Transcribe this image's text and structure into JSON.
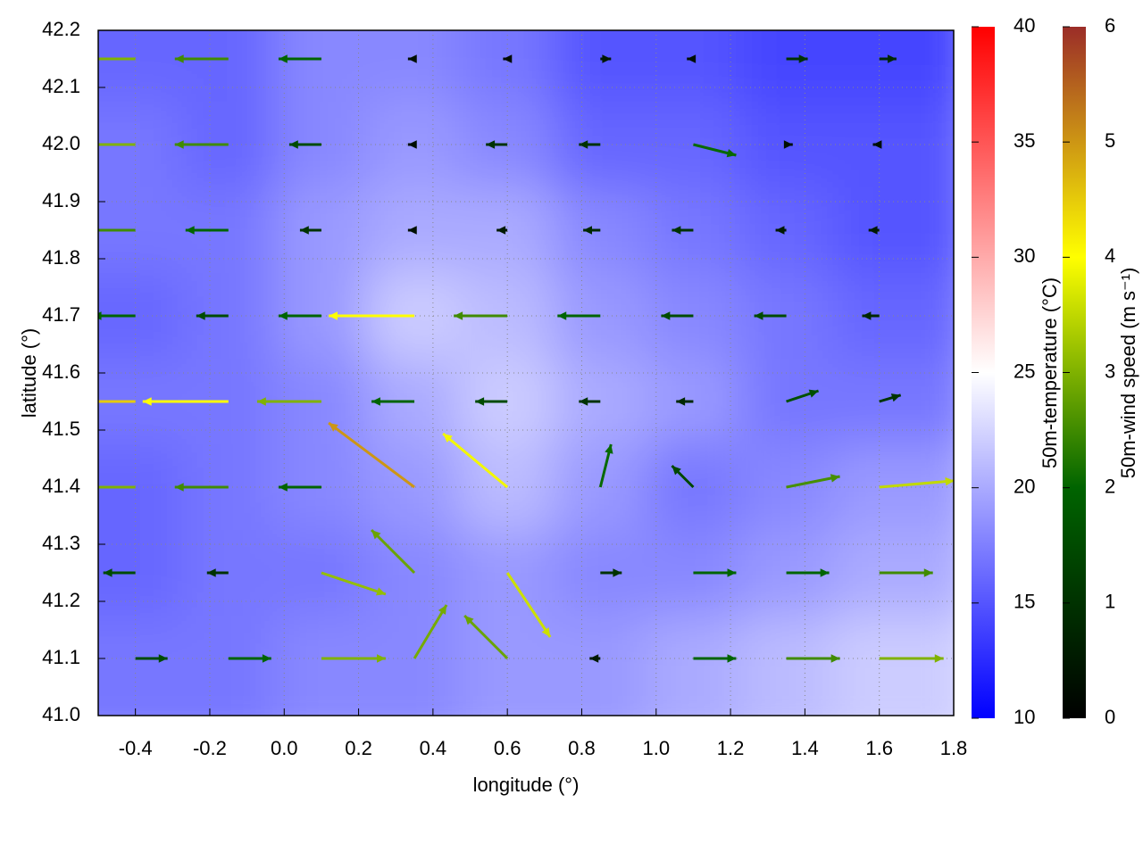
{
  "chart_data": {
    "type": "vector",
    "xlabel": "longitude (°)",
    "ylabel": "latitude (°)",
    "xlim": [
      -0.5,
      1.8
    ],
    "ylim": [
      41.0,
      42.2
    ],
    "xticks": [
      {
        "value": -0.4,
        "label": "-0.4"
      },
      {
        "value": -0.2,
        "label": "-0.2"
      },
      {
        "value": 0,
        "label": "0.0"
      },
      0.2,
      0.4,
      0.6,
      0.8,
      {
        "value": 1,
        "label": "1.0"
      },
      1.2,
      1.4,
      1.6,
      1.8
    ],
    "yticks": [
      {
        "value": 41,
        "label": "41.0"
      },
      41.1,
      41.2,
      41.3,
      41.4,
      41.5,
      41.6,
      41.7,
      41.8,
      41.9,
      {
        "value": 42,
        "label": "42.0"
      },
      42.1,
      42.2
    ],
    "grid": true,
    "lon": [
      -0.4,
      -0.15,
      0.1,
      0.35,
      0.6,
      0.85,
      1.1,
      1.35,
      1.6
    ],
    "lat": [
      42.15,
      42.0,
      41.85,
      41.7,
      41.55,
      41.4,
      41.25,
      41.1
    ],
    "u": [
      [
        -3,
        -2.5,
        -2,
        -0.3,
        -0.2,
        0.5,
        -0.3,
        1,
        0.8
      ],
      [
        -3,
        -2.5,
        -1.5,
        -0.3,
        -1,
        -1,
        2,
        0.3,
        -0.3
      ],
      [
        -2.5,
        -2,
        -1,
        -0.3,
        -0.5,
        -0.8,
        -1,
        -0.5,
        -0.5
      ],
      [
        -2,
        -1.5,
        -2,
        -4,
        -2.5,
        -2,
        -1.5,
        -1.5,
        -0.8
      ],
      [
        -4.5,
        -4,
        -3,
        -2,
        -1.5,
        -1,
        -0.8,
        1.5,
        1
      ],
      [
        -3,
        -2.5,
        -2,
        -4,
        -3,
        0.5,
        -1,
        2.5,
        3.5
      ],
      [
        -1.5,
        -1,
        3,
        -2,
        2,
        1,
        2,
        2,
        2.5
      ],
      [
        1.5,
        2,
        3,
        1.5,
        -2,
        -0.5,
        2,
        2.5,
        3
      ]
    ],
    "v": [
      [
        0,
        0,
        0,
        0,
        0,
        0,
        0,
        0,
        0
      ],
      [
        0,
        0,
        0,
        0,
        0,
        0,
        -0.5,
        0,
        0
      ],
      [
        0,
        0,
        0,
        0,
        0,
        0,
        0,
        0,
        0
      ],
      [
        0,
        0,
        0,
        0,
        0,
        0,
        0,
        0,
        0
      ],
      [
        0,
        0,
        0,
        0,
        0,
        0,
        0,
        0.5,
        0.3
      ],
      [
        0,
        0,
        0,
        3,
        2.5,
        2,
        1,
        0.5,
        0.3
      ],
      [
        0,
        0,
        -1,
        2,
        -3,
        0,
        0,
        0,
        0
      ],
      [
        0,
        0,
        0,
        2.5,
        2,
        0,
        0,
        0,
        0
      ]
    ],
    "temperature": [
      [
        16,
        16,
        18,
        18,
        17,
        15,
        15,
        14,
        14
      ],
      [
        17,
        16,
        18,
        19,
        18,
        16,
        16,
        15,
        15
      ],
      [
        17,
        17,
        19,
        20,
        20,
        18,
        17,
        16,
        15
      ],
      [
        16,
        17,
        19,
        22,
        21,
        19,
        18,
        17,
        16
      ],
      [
        17,
        17,
        18,
        20,
        22,
        20,
        19,
        17,
        17
      ],
      [
        16,
        17,
        18,
        19,
        21,
        19,
        17,
        18,
        19
      ],
      [
        16,
        17,
        17,
        18,
        19,
        18,
        18,
        19,
        20
      ],
      [
        17,
        17,
        18,
        18,
        19,
        19,
        20,
        21,
        22
      ]
    ],
    "temperature_label": "50m-temperature (°C)",
    "temperature_lim": [
      10,
      40
    ],
    "temperature_ticks": [
      10,
      15,
      20,
      25,
      30,
      35,
      40
    ],
    "temperature_colors": [
      "#0000ff",
      "#ffffff",
      "#ff0000"
    ],
    "speed_label": "50m-wind speed (m s⁻¹)",
    "speed_lim": [
      0,
      6
    ],
    "speed_ticks": [
      0,
      1,
      2,
      3,
      4,
      5,
      6
    ],
    "speed_colors": [
      "#000000",
      "#006400",
      "#ffff00",
      "#9b2d28"
    ]
  }
}
